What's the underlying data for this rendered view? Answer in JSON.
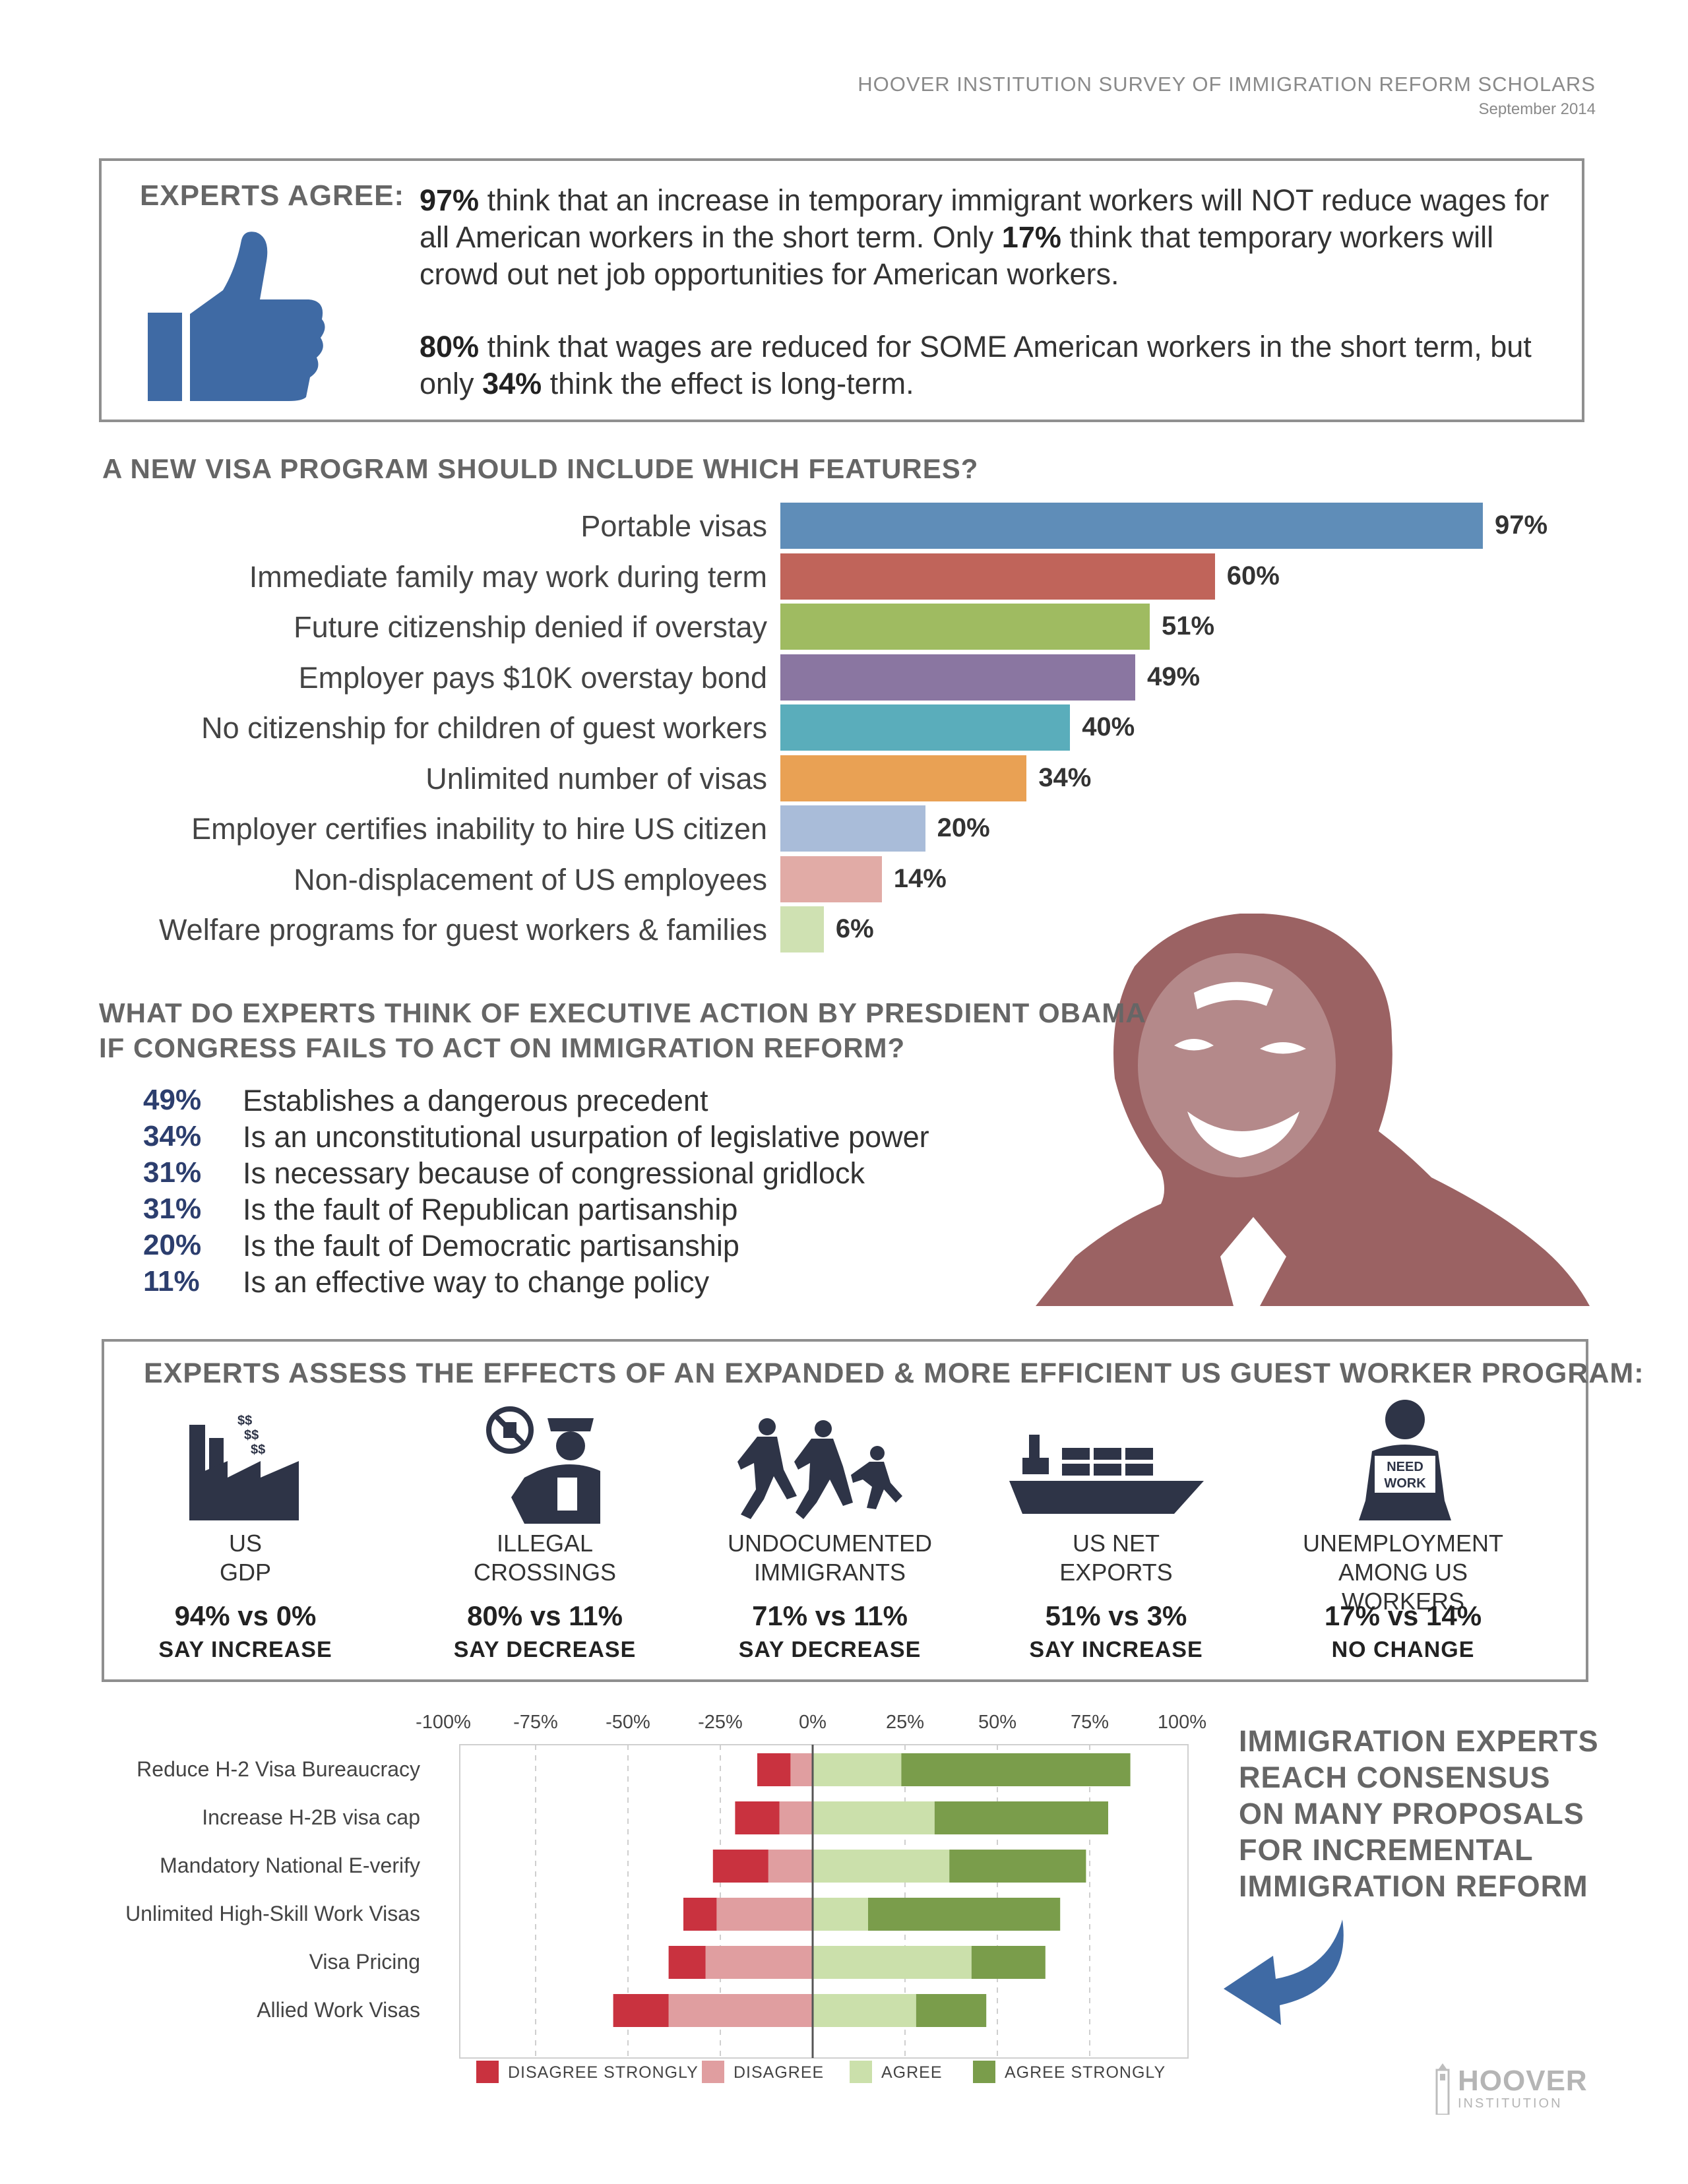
{
  "header": {
    "title": "HOOVER INSTITUTION SURVEY OF IMMIGRATION REFORM SCHOLARS",
    "date": "September 2014"
  },
  "experts_agree": {
    "label": "EXPERTS AGREE:",
    "p1_pct1": "97%",
    "p1_text1": " think that an increase in temporary immigrant workers will NOT reduce wages for all American workers in the short term. Only ",
    "p1_pct2": "17%",
    "p1_text2": " think that temporary workers will crowd out net job opportunities for American workers.",
    "p2_pct1": "80%",
    "p2_text1": " think that wages are reduced for SOME American workers in the short term, but only ",
    "p2_pct2": "34%",
    "p2_text2": " think the effect is long-term."
  },
  "chart_data": [
    {
      "type": "bar",
      "orientation": "horizontal",
      "title": "A NEW VISA PROGRAM SHOULD INCLUDE WHICH FEATURES?",
      "categories": [
        "Portable visas",
        "Immediate family may work during term",
        "Future citizenship denied if overstay",
        "Employer pays $10K overstay bond",
        "No citizenship for children of guest workers",
        "Unlimited number of visas",
        "Employer certifies inability to hire US citizen",
        "Non-displacement of US employees",
        "Welfare programs for guest workers & families"
      ],
      "values": [
        97,
        60,
        51,
        49,
        40,
        34,
        20,
        14,
        6
      ],
      "value_labels": [
        "97%",
        "60%",
        "51%",
        "49%",
        "40%",
        "34%",
        "20%",
        "14%",
        "6%"
      ],
      "colors": [
        "#5f8db8",
        "#c0645a",
        "#9fbb61",
        "#8a76a1",
        "#5aadbb",
        "#e9a154",
        "#a9bcd9",
        "#e1aba6",
        "#cfe1b2"
      ]
    },
    {
      "type": "bar",
      "orientation": "horizontal-diverging",
      "categories": [
        "Reduce H-2 Visa Bureaucracy",
        "Increase H-2B visa cap",
        "Mandatory National E-verify",
        "Unlimited High-Skill Work Visas",
        "Visa Pricing",
        "Allied Work Visas"
      ],
      "x_ticks": [
        "-100%",
        "-75%",
        "-50%",
        "-25%",
        "0%",
        "25%",
        "50%",
        "75%",
        "100%"
      ],
      "xlim": [
        -100,
        100
      ],
      "series": [
        {
          "name": "DISAGREE STRONGLY",
          "color": "#c9323f",
          "values": [
            -9,
            -12,
            -15,
            -9,
            -10,
            -15
          ]
        },
        {
          "name": "DISAGREE",
          "color": "#e09ea0",
          "values": [
            -6,
            -9,
            -12,
            -26,
            -29,
            -39
          ]
        },
        {
          "name": "AGREE",
          "color": "#cbe0ab",
          "values": [
            24,
            33,
            37,
            15,
            43,
            28
          ]
        },
        {
          "name": "AGREE STRONGLY",
          "color": "#7a9d4b",
          "values": [
            62,
            47,
            37,
            52,
            20,
            19
          ]
        }
      ]
    }
  ],
  "executive": {
    "title1": "WHAT DO EXPERTS THINK OF EXECUTIVE ACTION BY PRESDIENT OBAMA",
    "title2": "IF CONGRESS FAILS TO ACT ON IMMIGRATION REFORM?",
    "items": [
      {
        "pct": "49%",
        "text": "Establishes a dangerous precedent"
      },
      {
        "pct": "34%",
        "text": "Is an unconstitutional usurpation of legislative power"
      },
      {
        "pct": "31%",
        "text": "Is necessary because of congressional gridlock"
      },
      {
        "pct": "31%",
        "text": "Is the fault of Republican partisanship"
      },
      {
        "pct": "20%",
        "text": "Is the fault of Democratic partisanship"
      },
      {
        "pct": "11%",
        "text": "Is an effective way to change policy"
      }
    ]
  },
  "effects": {
    "title": "EXPERTS ASSESS THE EFFECTS OF AN EXPANDED & MORE EFFICIENT US GUEST WORKER PROGRAM:",
    "items": [
      {
        "label1": "US",
        "label2": "GDP",
        "value": "94% vs 0%",
        "note": "SAY INCREASE",
        "icon": "factory-icon"
      },
      {
        "label1": "ILLEGAL",
        "label2": "CROSSINGS",
        "value": "80% vs 11%",
        "note": "SAY DECREASE",
        "icon": "border-guard-icon"
      },
      {
        "label1": "UNDOCUMENTED",
        "label2": "IMMIGRANTS",
        "value": "71% vs 11%",
        "note": "SAY DECREASE",
        "icon": "running-family-icon"
      },
      {
        "label1": "US NET",
        "label2": "EXPORTS",
        "value": "51% vs 3%",
        "note": "SAY INCREASE",
        "icon": "cargo-ship-icon"
      },
      {
        "label1": "UNEMPLOYMENT",
        "label2": "AMONG US WORKERS",
        "value": "17% vs 14%",
        "note": "NO CHANGE",
        "icon": "need-work-icon"
      }
    ],
    "icon_text": {
      "money": "$$",
      "need": "NEED",
      "work": "WORK"
    }
  },
  "consensus": {
    "lines": [
      "IMMIGRATION EXPERTS",
      "REACH CONSENSUS",
      "ON MANY PROPOSALS",
      "FOR INCREMENTAL",
      "IMMIGRATION REFORM"
    ]
  },
  "footer": {
    "logo": "HOOVER",
    "logo_sub": "INSTITUTION"
  }
}
